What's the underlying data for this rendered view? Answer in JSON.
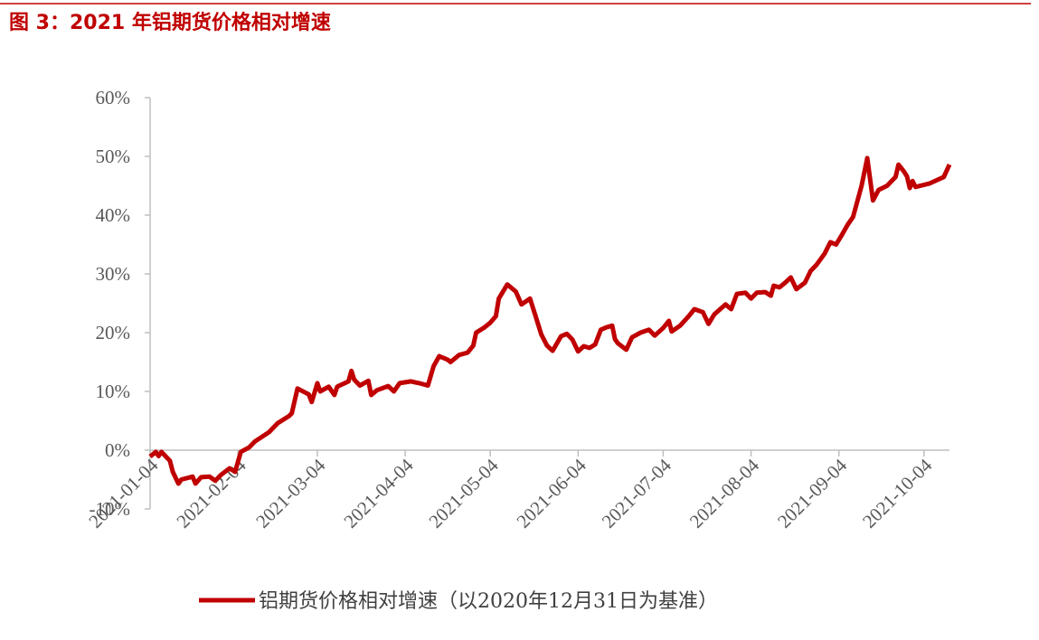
{
  "chart_data": {
    "type": "line",
    "title": "图 3：2021 年铝期货价格相对增速",
    "x": [
      "2021-01-04",
      "2021-01-06",
      "2021-01-07",
      "2021-01-08",
      "2021-01-11",
      "2021-01-12",
      "2021-01-14",
      "2021-01-15",
      "2021-01-19",
      "2021-01-20",
      "2021-01-22",
      "2021-01-25",
      "2021-01-27",
      "2021-01-29",
      "2021-02-01",
      "2021-02-03",
      "2021-02-05",
      "2021-02-08",
      "2021-02-10",
      "2021-02-15",
      "2021-02-18",
      "2021-02-22",
      "2021-02-23",
      "2021-02-25",
      "2021-03-01",
      "2021-03-02",
      "2021-03-04",
      "2021-03-05",
      "2021-03-08",
      "2021-03-10",
      "2021-03-11",
      "2021-03-15",
      "2021-03-16",
      "2021-03-17",
      "2021-03-19",
      "2021-03-22",
      "2021-03-23",
      "2021-03-25",
      "2021-03-29",
      "2021-03-31",
      "2021-04-02",
      "2021-04-06",
      "2021-04-08",
      "2021-04-09",
      "2021-04-12",
      "2021-04-14",
      "2021-04-16",
      "2021-04-19",
      "2021-04-20",
      "2021-04-23",
      "2021-04-26",
      "2021-04-28",
      "2021-04-29",
      "2021-05-02",
      "2021-05-04",
      "2021-05-06",
      "2021-05-07",
      "2021-05-10",
      "2021-05-13",
      "2021-05-15",
      "2021-05-18",
      "2021-05-20",
      "2021-05-22",
      "2021-05-24",
      "2021-05-26",
      "2021-05-29",
      "2021-05-31",
      "2021-06-02",
      "2021-06-04",
      "2021-06-06",
      "2021-06-08",
      "2021-06-10",
      "2021-06-12",
      "2021-06-14",
      "2021-06-16",
      "2021-06-17",
      "2021-06-18",
      "2021-06-21",
      "2021-06-23",
      "2021-06-26",
      "2021-06-29",
      "2021-07-01",
      "2021-07-04",
      "2021-07-06",
      "2021-07-07",
      "2021-07-10",
      "2021-07-13",
      "2021-07-15",
      "2021-07-18",
      "2021-07-20",
      "2021-07-22",
      "2021-07-26",
      "2021-07-28",
      "2021-07-30",
      "2021-08-02",
      "2021-08-04",
      "2021-08-06",
      "2021-08-09",
      "2021-08-11",
      "2021-08-12",
      "2021-08-14",
      "2021-08-16",
      "2021-08-18",
      "2021-08-20",
      "2021-08-23",
      "2021-08-25",
      "2021-08-27",
      "2021-08-30",
      "2021-09-01",
      "2021-09-03",
      "2021-09-05",
      "2021-09-07",
      "2021-09-09",
      "2021-09-12",
      "2021-09-14",
      "2021-09-16",
      "2021-09-18",
      "2021-09-21",
      "2021-09-24",
      "2021-09-25",
      "2021-09-27",
      "2021-09-28",
      "2021-09-29",
      "2021-09-30",
      "2021-10-01",
      "2021-10-06",
      "2021-10-11",
      "2021-10-13"
    ],
    "series": [
      {
        "name": "铝期货价格相对增速（以2020年12月31日为基准）",
        "color": "#c00000",
        "values": [
          -1.1,
          -0.3,
          -1,
          -0.3,
          -1.8,
          -3.7,
          -5.7,
          -5,
          -4.5,
          -5.7,
          -4.6,
          -4.5,
          -5.2,
          -4.2,
          -3.1,
          -3.7,
          -0.3,
          0.5,
          1.5,
          3.1,
          4.6,
          5.8,
          6.3,
          10.5,
          9.5,
          8.2,
          11.4,
          10,
          10.8,
          9.4,
          10.8,
          11.7,
          13.5,
          12,
          11,
          11.8,
          9.4,
          10.2,
          10.9,
          10,
          11.4,
          11.7,
          11.5,
          11.4,
          11,
          14.3,
          16,
          15.4,
          15,
          16.2,
          16.6,
          17.8,
          20,
          20.9,
          21.7,
          22.8,
          25.8,
          28.2,
          27,
          24.8,
          25.8,
          22.8,
          19.7,
          17.8,
          16.9,
          19.4,
          19.8,
          18.8,
          16.8,
          17.7,
          17.4,
          18,
          20.5,
          20.9,
          21.2,
          18.9,
          18.2,
          17.1,
          19.2,
          20,
          20.5,
          19.5,
          20.8,
          22,
          20.2,
          21.2,
          22.8,
          24,
          23.5,
          21.5,
          23.1,
          24.8,
          24,
          26.6,
          26.8,
          25.8,
          26.8,
          26.9,
          26.3,
          28,
          27.7,
          28.5,
          29.4,
          27.4,
          28.5,
          30.5,
          31.5,
          33.5,
          35.4,
          35,
          36.6,
          38.3,
          39.7,
          45,
          49.7,
          42.5,
          44.3,
          45,
          46.5,
          48.6,
          47.4,
          46.6,
          44.6,
          45.8,
          44.8,
          45.4,
          46.5,
          48.6
        ]
      }
    ],
    "xlim": [
      "2021-01-04",
      "2021-10-13"
    ],
    "xticks": [
      "2021-01-04",
      "2021-02-04",
      "2021-03-04",
      "2021-04-04",
      "2021-05-04",
      "2021-06-04",
      "2021-07-04",
      "2021-08-04",
      "2021-09-04",
      "2021-10-04"
    ],
    "ylim": [
      -10,
      60
    ],
    "yticks": [
      {
        "value": -10,
        "label": "-10%"
      },
      {
        "value": 0,
        "label": "0%"
      },
      {
        "value": 10,
        "label": "10%"
      },
      {
        "value": 20,
        "label": "20%"
      },
      {
        "value": 30,
        "label": "30%"
      },
      {
        "value": 40,
        "label": "40%"
      },
      {
        "value": 50,
        "label": "50%"
      },
      {
        "value": 60,
        "label": "60%"
      }
    ],
    "grid": false,
    "legend": "bottom"
  }
}
